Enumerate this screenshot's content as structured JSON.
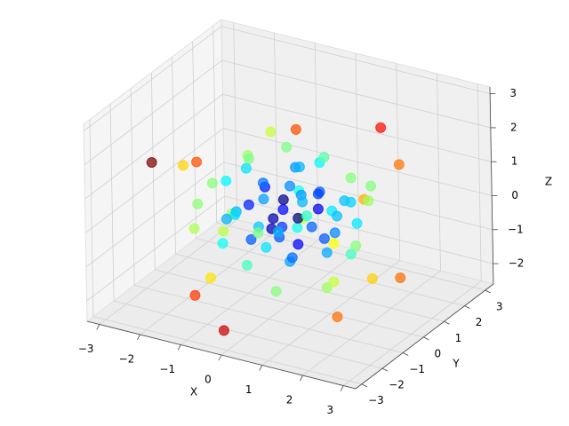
{
  "chart_data": {
    "type": "scatter3d",
    "xlabel": "X",
    "ylabel": "Y",
    "zlabel": "Z",
    "xlim": [
      -3.3,
      3.3
    ],
    "ylim": [
      -3.3,
      3.4
    ],
    "zlim": [
      -2.6,
      3.2
    ],
    "xticks": [
      {
        "value": -3,
        "label": "−3"
      },
      {
        "value": -2,
        "label": "−2"
      },
      {
        "value": -1,
        "label": "−1"
      },
      0,
      1,
      2,
      3
    ],
    "yticks": [
      {
        "value": -3,
        "label": "−3"
      },
      {
        "value": -2,
        "label": "−2"
      },
      {
        "value": -1,
        "label": "−1"
      },
      0,
      1,
      2,
      3
    ],
    "zticks": [
      {
        "value": -2,
        "label": "−2"
      },
      {
        "value": -1,
        "label": "−1"
      },
      0,
      1,
      2,
      3
    ],
    "grid": true,
    "colormap": "jet",
    "series": [
      {
        "x": [
          -2.2,
          -0.8,
          1.1,
          -1.3,
          1.8,
          0.5,
          2.6,
          -1.6,
          2.0,
          -2.3,
          1.6,
          2.2,
          -0.9,
          0.2,
          -1.8,
          1.2,
          -1.0,
          0.8,
          -1.9,
          1.9,
          -0.4,
          0.6,
          -1.2,
          1.4,
          -0.6,
          0.3,
          -1.5,
          1.0,
          0.0,
          -2.0,
          1.7,
          -0.3,
          0.9,
          -1.1,
          0.4,
          -0.7,
          1.2,
          -1.3,
          0.5,
          -0.2,
          0.8,
          -0.9,
          0.6,
          -0.5,
          1.0,
          -0.4,
          0.3,
          -0.8,
          0.2,
          0.7,
          -0.3,
          0.1,
          -0.6,
          0.4,
          -0.1,
          0.5,
          -0.2,
          0.9,
          -1.0,
          0.3,
          -0.5,
          1.1,
          -1.2,
          0.6,
          -0.7,
          1.3,
          -0.1,
          0.2,
          -0.9,
          0.8,
          -1.4,
          1.4,
          0.0,
          -0.3,
          0.7,
          -0.6,
          1.5,
          -1.6,
          0.1,
          -0.2
        ],
        "y": [
          -2.2,
          -1.6,
          2.4,
          -1.8,
          -1.2,
          -0.5,
          0.3,
          -1.4,
          1.5,
          -0.5,
          0.9,
          -0.6,
          -2.0,
          1.8,
          0.4,
          -1.6,
          1.2,
          0.6,
          -0.8,
          0.2,
          -1.9,
          1.9,
          0.9,
          -0.9,
          -0.7,
          -1.2,
          1.1,
          1.3,
          0.0,
          0.3,
          -0.3,
          1.5,
          -1.3,
          -1.0,
          0.8,
          0.3,
          0.4,
          -0.4,
          -0.9,
          1.0,
          0.7,
          0.6,
          -0.5,
          -0.8,
          -0.2,
          0.5,
          0.9,
          -0.3,
          -0.6,
          0.2,
          -0.2,
          0.3,
          0.1,
          -0.3,
          -0.5,
          0.5,
          0.2,
          -0.6,
          0.8,
          -1.0,
          1.1,
          0.9,
          -0.6,
          1.2,
          -1.1,
          -0.4,
          0.6,
          -0.2,
          -0.2,
          0.3,
          0.2,
          0.6,
          -1.4,
          1.3,
          -0.8,
          0.7,
          1.1,
          -1.2,
          1.6,
          -1.6
        ],
        "z": [
          1.9,
          -2.9,
          1.8,
          2.0,
          -1.9,
          2.9,
          -1.2,
          -2.2,
          1.4,
          1.0,
          -1.8,
          1.4,
          -1.2,
          -1.6,
          -1.2,
          1.0,
          1.6,
          -2.0,
          -0.6,
          0.9,
          0.8,
          0.4,
          -1.3,
          -1.3,
          1.9,
          -1.6,
          0.7,
          -1.2,
          2.0,
          0.2,
          -0.5,
          -0.8,
          0.5,
          -0.7,
          1.3,
          -1.3,
          0.6,
          0.8,
          -0.8,
          0.9,
          -0.6,
          0.4,
          1.0,
          -0.5,
          -0.3,
          -0.7,
          0.3,
          0.2,
          0.5,
          0.8,
          -0.4,
          -0.2,
          0.6,
          -0.6,
          0.1,
          0.1,
          0.3,
          0.2,
          -0.2,
          -0.1,
          0.2,
          0.3,
          -0.2,
          -0.4,
          0.4,
          0.7,
          1.1,
          -1.1,
          1.2,
          -1.0,
          -0.5,
          -0.1,
          0.3,
          -0.3,
          1.3,
          -1.0,
          0.8,
          0.4,
          1.0,
          -0.8
        ]
      }
    ]
  }
}
